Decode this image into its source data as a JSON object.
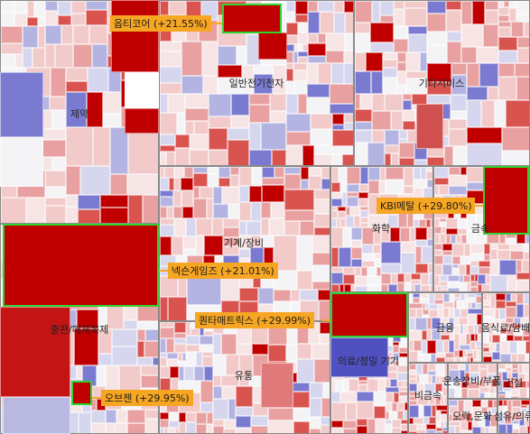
{
  "chart_data": {
    "type": "treemap",
    "sectors": [
      {
        "name": "제약"
      },
      {
        "name": "출판/매체복제"
      },
      {
        "name": "일반전기전자"
      },
      {
        "name": "기계/장비"
      },
      {
        "name": "유통"
      },
      {
        "name": "기타서비스"
      },
      {
        "name": "화학"
      },
      {
        "name": "금속"
      },
      {
        "name": "의료/정밀 기기"
      },
      {
        "name": "금융"
      },
      {
        "name": "음식료/담배"
      },
      {
        "name": "비금속"
      },
      {
        "name": "운송장비/부품"
      },
      {
        "name": "건설"
      },
      {
        "name": "오락,문화"
      },
      {
        "name": "섬유/의류"
      }
    ],
    "highlighted_stocks": [
      {
        "label": "옵티코어 (+21.55%)",
        "name": "옵티코어",
        "change_pct": 21.55
      },
      {
        "label": "KBI메탈 (+29.80%)",
        "name": "KBI메탈",
        "change_pct": 29.8
      },
      {
        "label": "넥슨게임즈 (+21.01%)",
        "name": "넥슨게임즈",
        "change_pct": 21.01
      },
      {
        "label": "퀀타매트릭스 (+29.99%)",
        "name": "퀀타매트릭스",
        "change_pct": 29.99
      },
      {
        "label": "오브젠 (+29.95%)",
        "name": "오브젠",
        "change_pct": 29.95
      }
    ],
    "colors": {
      "up_strong": "#c00000",
      "down_strong": "#5656c4",
      "neutral": "#f4f4f4",
      "highlight_border": "#2fd42f",
      "callout": "#f6a623"
    }
  }
}
